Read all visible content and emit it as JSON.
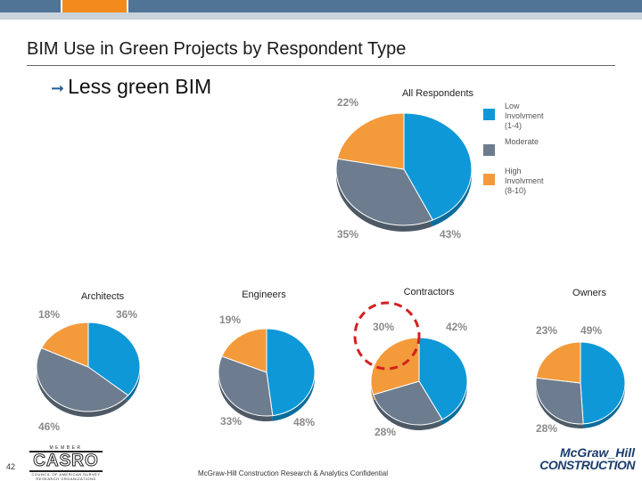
{
  "slide": {
    "title": "BIM Use in Green Projects by Respondent Type",
    "bullet": "Less green BIM",
    "page_number": "42",
    "footer": "McGraw-Hill Construction Research & Analytics Confidential",
    "logo_left": {
      "top": "MEMBER",
      "name": "CASRO",
      "sub": "COUNCIL OF AMERICAN SURVEY RESEARCH ORGANIZATIONS"
    },
    "logo_right": {
      "line1": "McGraw_Hill",
      "line2": "CONSTRUCTION"
    }
  },
  "colors": {
    "low": "#0f98d7",
    "moderate": "#6d7c8e",
    "high": "#f39a3b",
    "topbar_dark": "#4f7495",
    "topbar_orange": "#f28a1e",
    "annotation": "#d42020"
  },
  "chart_data": [
    {
      "type": "pie",
      "title": "All Respondents",
      "legend": [
        {
          "label": "Low Involvment (1-4)",
          "series": "low"
        },
        {
          "label": "Moderate",
          "series": "moderate"
        },
        {
          "label": "High Involvment (8-10)",
          "series": "high"
        }
      ],
      "legend_position": "right",
      "slices": [
        {
          "series": "low",
          "value": 43,
          "label": "43%"
        },
        {
          "series": "moderate",
          "value": 35,
          "label": "35%"
        },
        {
          "series": "high",
          "value": 22,
          "label": "22%"
        }
      ]
    },
    {
      "type": "pie",
      "title": "Architects",
      "slices": [
        {
          "series": "low",
          "value": 36,
          "label": "36%"
        },
        {
          "series": "moderate",
          "value": 46,
          "label": "46%"
        },
        {
          "series": "high",
          "value": 18,
          "label": "18%"
        }
      ]
    },
    {
      "type": "pie",
      "title": "Engineers",
      "slices": [
        {
          "series": "low",
          "value": 48,
          "label": "48%"
        },
        {
          "series": "moderate",
          "value": 33,
          "label": "33%"
        },
        {
          "series": "high",
          "value": 19,
          "label": "19%"
        }
      ]
    },
    {
      "type": "pie",
      "title": "Contractors",
      "highlighted": true,
      "slices": [
        {
          "series": "low",
          "value": 42,
          "label": "42%"
        },
        {
          "series": "moderate",
          "value": 28,
          "label": "28%"
        },
        {
          "series": "high",
          "value": 30,
          "label": "30%"
        }
      ]
    },
    {
      "type": "pie",
      "title": "Owners",
      "slices": [
        {
          "series": "low",
          "value": 49,
          "label": "49%"
        },
        {
          "series": "moderate",
          "value": 28,
          "label": "28%"
        },
        {
          "series": "high",
          "value": 23,
          "label": "23%"
        }
      ]
    }
  ]
}
